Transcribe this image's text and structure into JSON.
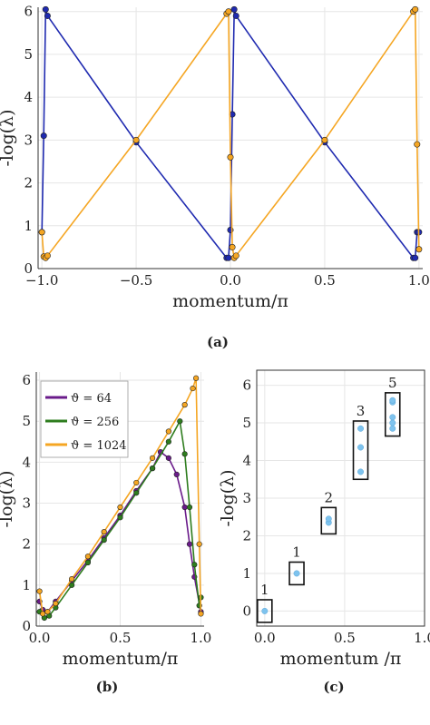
{
  "chart_data": [
    {
      "panel": "(a)",
      "type": "line",
      "xlabel": "momentum/π",
      "ylabel": "-log(λ)",
      "xlim": [
        -1.02,
        1.02
      ],
      "ylim": [
        0,
        6.1
      ],
      "xticks": [
        -1.0,
        -0.5,
        0.0,
        0.5,
        1.0
      ],
      "xtick_labels": [
        "−1.0",
        "−0.5",
        "0.0",
        "0.5",
        "1.0"
      ],
      "yticks": [
        0,
        1,
        2,
        3,
        4,
        5,
        6
      ],
      "ytick_labels": [
        "0",
        "1",
        "2",
        "3",
        "4",
        "5",
        "6"
      ],
      "grid": true,
      "series": [
        {
          "color": "#1f2ab0",
          "x": [
            -1.0,
            -0.99,
            -0.98,
            -0.97,
            -0.5,
            -0.02,
            -0.01,
            0.0,
            0.01,
            0.02,
            0.03,
            0.5,
            0.97,
            0.98,
            0.99,
            1.0
          ],
          "y": [
            0.85,
            3.1,
            6.05,
            5.9,
            2.95,
            0.25,
            0.25,
            0.9,
            3.6,
            6.05,
            5.9,
            2.95,
            0.25,
            0.25,
            0.85,
            0.85
          ]
        },
        {
          "color": "#f5a623",
          "x": [
            -1.0,
            -0.99,
            -0.98,
            -0.97,
            -0.5,
            -0.02,
            -0.01,
            0.0,
            0.01,
            0.02,
            0.03,
            0.5,
            0.97,
            0.98,
            0.99,
            1.0
          ],
          "y": [
            0.85,
            0.28,
            0.25,
            0.3,
            3.0,
            5.95,
            6.0,
            2.6,
            0.5,
            0.25,
            0.3,
            3.0,
            6.0,
            6.05,
            2.9,
            0.45
          ]
        }
      ]
    },
    {
      "panel": "(b)",
      "type": "line",
      "xlabel": "momentum/π",
      "ylabel": "-log(λ)",
      "xlim": [
        -0.02,
        1.02
      ],
      "ylim": [
        0,
        6.2
      ],
      "xticks": [
        0.0,
        0.5,
        1.0
      ],
      "xtick_labels": [
        "0.0",
        "0.5",
        "1.0"
      ],
      "yticks": [
        0,
        1,
        2,
        3,
        4,
        5,
        6
      ],
      "ytick_labels": [
        "0",
        "1",
        "2",
        "3",
        "4",
        "5",
        "6"
      ],
      "grid": true,
      "legend_position": "top-left",
      "series": [
        {
          "name": "ϑ = 64",
          "color": "#6a1b8a",
          "x": [
            0.0,
            0.02,
            0.05,
            0.1,
            0.2,
            0.3,
            0.4,
            0.5,
            0.6,
            0.7,
            0.75,
            0.8,
            0.85,
            0.9,
            0.93,
            0.96,
            1.0
          ],
          "y": [
            0.6,
            0.4,
            0.35,
            0.6,
            1.1,
            1.6,
            2.15,
            2.7,
            3.3,
            3.85,
            4.25,
            4.1,
            3.7,
            2.9,
            2.0,
            1.2,
            0.35
          ]
        },
        {
          "name": "ϑ = 256",
          "color": "#2e7d1e",
          "x": [
            0.0,
            0.03,
            0.06,
            0.1,
            0.2,
            0.3,
            0.4,
            0.5,
            0.6,
            0.7,
            0.8,
            0.87,
            0.9,
            0.93,
            0.96,
            0.99,
            1.0
          ],
          "y": [
            0.35,
            0.2,
            0.25,
            0.45,
            1.0,
            1.55,
            2.1,
            2.65,
            3.25,
            3.85,
            4.5,
            5.0,
            4.2,
            2.9,
            1.5,
            0.5,
            0.7
          ]
        },
        {
          "name": "ϑ = 1024",
          "color": "#f5a623",
          "x": [
            0.0,
            0.02,
            0.05,
            0.1,
            0.2,
            0.3,
            0.4,
            0.5,
            0.6,
            0.7,
            0.8,
            0.9,
            0.95,
            0.97,
            0.99,
            1.0
          ],
          "y": [
            0.85,
            0.3,
            0.35,
            0.55,
            1.15,
            1.7,
            2.3,
            2.9,
            3.5,
            4.1,
            4.75,
            5.4,
            5.8,
            6.05,
            2.0,
            0.3
          ]
        }
      ]
    },
    {
      "panel": "(c)",
      "type": "scatter",
      "xlabel": "momentum /π",
      "ylabel": "-log(λ)",
      "xlim": [
        -0.05,
        1.0
      ],
      "ylim": [
        -0.4,
        6.4
      ],
      "xticks": [
        0.0,
        0.5,
        1.0
      ],
      "xtick_labels": [
        "0.0",
        "0.5",
        "1.0"
      ],
      "yticks": [
        0,
        1,
        2,
        3,
        4,
        5,
        6
      ],
      "ytick_labels": [
        "0",
        "1",
        "2",
        "3",
        "4",
        "5",
        "6"
      ],
      "grid": true,
      "point_color": "#7ec3ee",
      "groups": [
        {
          "label": "1",
          "x": 0.0,
          "y": [
            0.0
          ],
          "ymin": -0.3,
          "ymax": 0.3
        },
        {
          "label": "1",
          "x": 0.2,
          "y": [
            1.0
          ],
          "ymin": 0.7,
          "ymax": 1.3
        },
        {
          "label": "2",
          "x": 0.4,
          "y": [
            2.35,
            2.45
          ],
          "ymin": 2.05,
          "ymax": 2.75
        },
        {
          "label": "3",
          "x": 0.6,
          "y": [
            3.7,
            4.35,
            4.85
          ],
          "ymin": 3.5,
          "ymax": 5.05
        },
        {
          "label": "5",
          "x": 0.8,
          "y": [
            4.85,
            5.0,
            5.15,
            5.55,
            5.6
          ],
          "ymin": 4.65,
          "ymax": 5.8
        }
      ]
    }
  ]
}
